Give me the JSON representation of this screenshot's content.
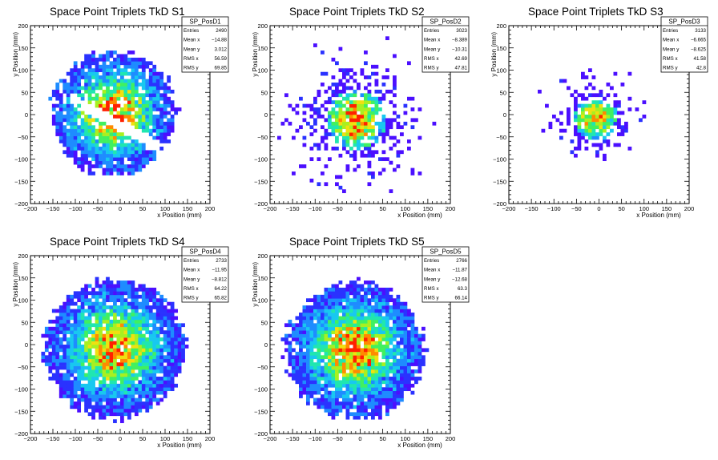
{
  "chart_data": [
    {
      "type": "heatmap",
      "title": "Space Point Triplets TkD S1",
      "xlabel": "x Position (mm)",
      "ylabel": "y Position (mm)",
      "xlim": [
        -200,
        200
      ],
      "ylim": [
        -200,
        200
      ],
      "x_ticks": [
        "−200",
        "−150",
        "−100",
        "−50",
        "0",
        "50",
        "100",
        "150",
        "200"
      ],
      "y_ticks": [
        "−200",
        "−150",
        "−100",
        "−50",
        "0",
        "50",
        "100",
        "150",
        "200"
      ],
      "stats": {
        "name": "SP_PosD1",
        "rows": [
          {
            "label": "Entries",
            "value": "2490"
          },
          {
            "label": "Mean x",
            "value": "−14.88"
          },
          {
            "label": "Mean y",
            "value": "3.012"
          },
          {
            "label": "RMS x",
            "value": "56.59"
          },
          {
            "label": "RMS y",
            "value": "69.85"
          }
        ]
      },
      "distribution": {
        "shape": "disk",
        "center": [
          -14.88,
          3.012
        ],
        "radius": 130,
        "spread": 55,
        "seed": 11,
        "gap": true,
        "density": 0.9
      }
    },
    {
      "type": "heatmap",
      "title": "Space Point Triplets TkD S2",
      "xlabel": "x Position (mm)",
      "ylabel": "y Position (mm)",
      "xlim": [
        -200,
        200
      ],
      "ylim": [
        -200,
        200
      ],
      "x_ticks": [
        "−200",
        "−150",
        "−100",
        "−50",
        "0",
        "50",
        "100",
        "150",
        "200"
      ],
      "y_ticks": [
        "−200",
        "−150",
        "−100",
        "−50",
        "0",
        "50",
        "100",
        "150",
        "200"
      ],
      "stats": {
        "name": "SP_PosD2",
        "rows": [
          {
            "label": "Entries",
            "value": "3023"
          },
          {
            "label": "Mean x",
            "value": "−8.389"
          },
          {
            "label": "Mean y",
            "value": "−10.31"
          },
          {
            "label": "RMS x",
            "value": "42.69"
          },
          {
            "label": "RMS y",
            "value": "47.81"
          }
        ]
      },
      "distribution": {
        "shape": "gauss",
        "center": [
          -8.389,
          -10.31
        ],
        "radius": 135,
        "spread": 42,
        "seed": 23,
        "gap": false,
        "density": 0.75
      }
    },
    {
      "type": "heatmap",
      "title": "Space Point Triplets TkD S3",
      "xlabel": "x Position (mm)",
      "ylabel": "y Position (mm)",
      "xlim": [
        -200,
        200
      ],
      "ylim": [
        -200,
        200
      ],
      "x_ticks": [
        "−200",
        "−150",
        "−100",
        "−50",
        "0",
        "50",
        "100",
        "150",
        "200"
      ],
      "y_ticks": [
        "−200",
        "−150",
        "−100",
        "−50",
        "0",
        "50",
        "100",
        "150",
        "200"
      ],
      "stats": {
        "name": "SP_PosD3",
        "rows": [
          {
            "label": "Entries",
            "value": "3133"
          },
          {
            "label": "Mean x",
            "value": "−6.665"
          },
          {
            "label": "Mean y",
            "value": "−8.625"
          },
          {
            "label": "RMS x",
            "value": "41.58"
          },
          {
            "label": "RMS y",
            "value": "42.8"
          }
        ]
      },
      "distribution": {
        "shape": "gauss",
        "center": [
          -6.665,
          -8.625
        ],
        "radius": 130,
        "spread": 30,
        "seed": 37,
        "gap": false,
        "density": 0.6
      }
    },
    {
      "type": "heatmap",
      "title": "Space Point Triplets TkD S4",
      "xlabel": "x Position (mm)",
      "ylabel": "y Position (mm)",
      "xlim": [
        -200,
        200
      ],
      "ylim": [
        -200,
        200
      ],
      "x_ticks": [
        "−200",
        "−150",
        "−100",
        "−50",
        "0",
        "50",
        "100",
        "150",
        "200"
      ],
      "y_ticks": [
        "−200",
        "−150",
        "−100",
        "−50",
        "0",
        "50",
        "100",
        "150",
        "200"
      ],
      "stats": {
        "name": "SP_PosD4",
        "rows": [
          {
            "label": "Entries",
            "value": "2733"
          },
          {
            "label": "Mean x",
            "value": "−11.95"
          },
          {
            "label": "Mean y",
            "value": "−8.812"
          },
          {
            "label": "RMS x",
            "value": "64.22"
          },
          {
            "label": "RMS y",
            "value": "65.82"
          }
        ]
      },
      "distribution": {
        "shape": "disk",
        "center": [
          -11.95,
          -8.812
        ],
        "radius": 148,
        "spread": 60,
        "seed": 53,
        "gap": false,
        "density": 0.92
      }
    },
    {
      "type": "heatmap",
      "title": "Space Point Triplets TkD S5",
      "xlabel": "x Position (mm)",
      "ylabel": "y Position (mm)",
      "xlim": [
        -200,
        200
      ],
      "ylim": [
        -200,
        200
      ],
      "x_ticks": [
        "−200",
        "−150",
        "−100",
        "−50",
        "0",
        "50",
        "100",
        "150",
        "200"
      ],
      "y_ticks": [
        "−200",
        "−150",
        "−100",
        "−50",
        "0",
        "50",
        "100",
        "150",
        "200"
      ],
      "stats": {
        "name": "SP_PosD5",
        "rows": [
          {
            "label": "Entries",
            "value": "2766"
          },
          {
            "label": "Mean x",
            "value": "−11.87"
          },
          {
            "label": "Mean y",
            "value": "−12.68"
          },
          {
            "label": "RMS x",
            "value": "63.3"
          },
          {
            "label": "RMS y",
            "value": "66.14"
          }
        ]
      },
      "distribution": {
        "shape": "disk",
        "center": [
          -11.87,
          -12.68
        ],
        "radius": 145,
        "spread": 60,
        "seed": 71,
        "gap": false,
        "density": 0.92
      }
    }
  ],
  "palette": [
    "#4b0fff",
    "#2a32ff",
    "#1e8cff",
    "#18c8f0",
    "#20e6b0",
    "#40f060",
    "#a8f020",
    "#f0e010",
    "#ff8a00",
    "#ff2000"
  ]
}
